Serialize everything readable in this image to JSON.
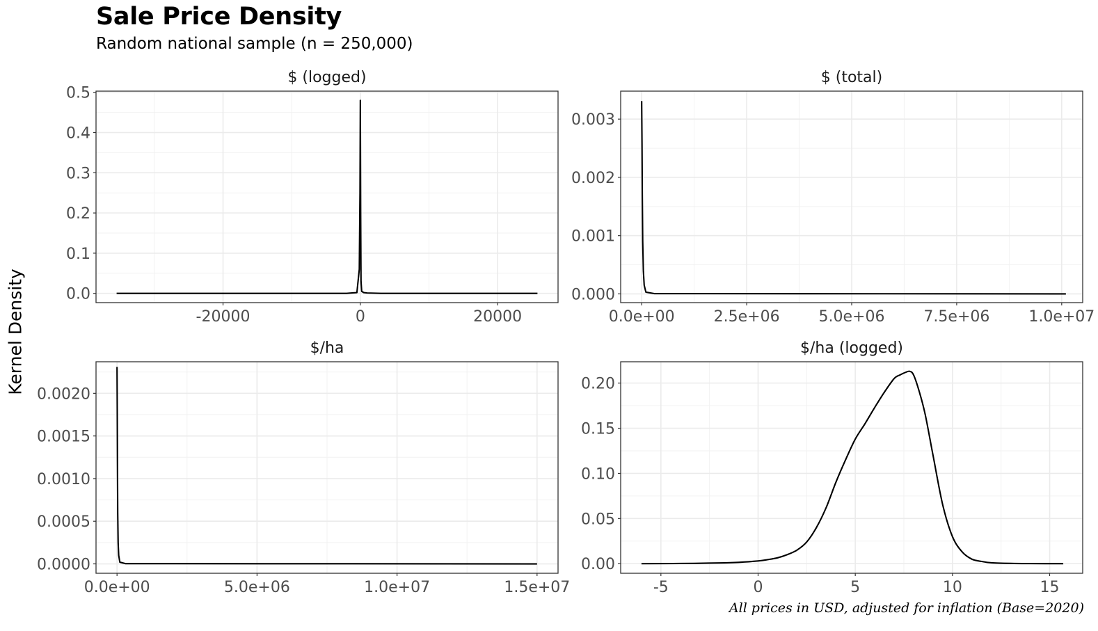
{
  "title": "Sale Price Density",
  "subtitle": "Random national sample (n = 250,000)",
  "ylabel": "Kernel Density",
  "caption": "All prices in USD, adjusted for inflation (Base=2020)",
  "chart_data": [
    {
      "type": "line",
      "title": "$ (logged)",
      "xlabel": "",
      "ylabel": "Kernel Density",
      "xlim": [
        -38500,
        28800
      ],
      "ylim": [
        -0.023,
        0.503
      ],
      "xticks": [
        -20000,
        0,
        20000
      ],
      "xtick_labels": [
        "-20000",
        "0",
        "20000"
      ],
      "yticks": [
        0.0,
        0.1,
        0.2,
        0.3,
        0.4,
        0.5
      ],
      "ytick_labels": [
        "0.0",
        "0.1",
        "0.2",
        "0.3",
        "0.4",
        "0.5"
      ],
      "grid": true,
      "series": [
        {
          "x": [
            -35500,
            -2000,
            -500,
            -150,
            -50,
            0,
            50,
            100,
            200,
            500,
            1000,
            3000,
            25800
          ],
          "y": [
            0,
            0,
            0.002,
            0.06,
            0.25,
            0.48,
            0.2,
            0.03,
            0.005,
            0.002,
            0.001,
            0,
            0
          ]
        }
      ]
    },
    {
      "type": "line",
      "title": "$ (total)",
      "xlabel": "",
      "ylabel": "Kernel Density",
      "xlim": [
        -500000,
        10500000
      ],
      "ylim": [
        -0.00015,
        0.00348
      ],
      "xticks": [
        0,
        2500000,
        5000000,
        7500000,
        10000000
      ],
      "xtick_labels": [
        "0.0e+00",
        "2.5e+06",
        "5.0e+06",
        "7.5e+06",
        "1.0e+07"
      ],
      "yticks": [
        0.0,
        0.001,
        0.002,
        0.003
      ],
      "ytick_labels": [
        "0.000",
        "0.001",
        "0.002",
        "0.003"
      ],
      "grid": true,
      "series": [
        {
          "x": [
            0,
            8000,
            15000,
            25000,
            40000,
            60000,
            100000,
            300000,
            10100000
          ],
          "y": [
            0.00331,
            0.0026,
            0.0017,
            0.0009,
            0.0004,
            0.00015,
            3e-05,
            5e-06,
            0
          ]
        }
      ]
    },
    {
      "type": "line",
      "title": "$/ha",
      "xlabel": "",
      "ylabel": "Kernel Density",
      "xlim": [
        -750000,
        15750000
      ],
      "ylim": [
        -0.00011,
        0.00237
      ],
      "xticks": [
        0,
        5000000,
        10000000,
        15000000
      ],
      "xtick_labels": [
        "0.0e+00",
        "5.0e+06",
        "1.0e+07",
        "1.5e+07"
      ],
      "yticks": [
        0.0,
        0.0005,
        0.001,
        0.0015,
        0.002
      ],
      "ytick_labels": [
        "0.0000",
        "0.0005",
        "0.0010",
        "0.0015",
        "0.0020"
      ],
      "grid": true,
      "series": [
        {
          "x": [
            0,
            8000,
            15000,
            25000,
            40000,
            60000,
            100000,
            300000,
            15000000
          ],
          "y": [
            0.00231,
            0.0018,
            0.0012,
            0.0006,
            0.00025,
            0.0001,
            2e-05,
            3e-06,
            0
          ]
        }
      ]
    },
    {
      "type": "line",
      "title": "$/ha (logged)",
      "xlabel": "",
      "ylabel": "Kernel Density",
      "xlim": [
        -7.07,
        16.7
      ],
      "ylim": [
        -0.0106,
        0.2236
      ],
      "xticks": [
        -5,
        0,
        5,
        10,
        15
      ],
      "xtick_labels": [
        "-5",
        "0",
        "5",
        "10",
        "15"
      ],
      "yticks": [
        0.0,
        0.05,
        0.1,
        0.15,
        0.2
      ],
      "ytick_labels": [
        "0.00",
        "0.05",
        "0.10",
        "0.15",
        "0.20"
      ],
      "grid": true,
      "series": [
        {
          "x": [
            -6,
            -4,
            -2,
            -1,
            0,
            0.5,
            1,
            1.5,
            2,
            2.5,
            3,
            3.5,
            4,
            4.5,
            5,
            5.5,
            6,
            6.5,
            7,
            7.3,
            7.6,
            7.8,
            8,
            8.3,
            8.6,
            9,
            9.5,
            10,
            10.5,
            11,
            11.5,
            12,
            13,
            14,
            15.7
          ],
          "y": [
            0,
            0.0002,
            0.0008,
            0.0015,
            0.003,
            0.0045,
            0.0065,
            0.01,
            0.015,
            0.024,
            0.04,
            0.062,
            0.09,
            0.115,
            0.138,
            0.155,
            0.173,
            0.19,
            0.205,
            0.209,
            0.212,
            0.213,
            0.209,
            0.19,
            0.165,
            0.12,
            0.065,
            0.03,
            0.013,
            0.005,
            0.0025,
            0.001,
            0.0003,
            0.0001,
            0
          ]
        }
      ]
    }
  ]
}
